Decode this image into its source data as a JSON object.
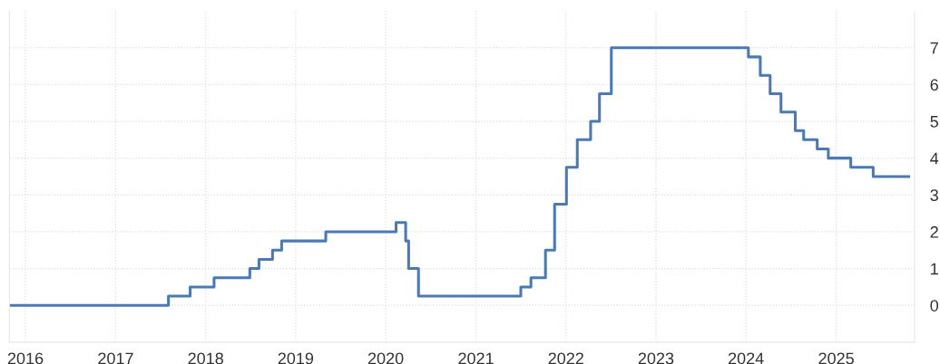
{
  "chart_data": {
    "type": "step",
    "x": [
      "2015-11-01",
      "2017-08-03",
      "2017-10-30",
      "2018-02-04",
      "2018-06-29",
      "2018-08-05",
      "2018-09-29",
      "2018-11-05",
      "2019-05-03",
      "2020-02-12",
      "2020-03-22",
      "2020-04-03",
      "2020-05-13",
      "2021-07-02",
      "2021-08-12",
      "2021-10-10",
      "2021-11-16",
      "2022-01-03",
      "2022-02-16",
      "2022-04-11",
      "2022-05-17",
      "2022-07-04",
      "2024-01-11",
      "2024-02-28",
      "2024-04-08",
      "2024-05-22",
      "2024-07-19",
      "2024-08-22",
      "2024-10-16",
      "2024-11-30",
      "2025-03-01",
      "2025-05-31",
      "2025-10-22"
    ],
    "series": [
      {
        "color": "#4a79b4",
        "values": [
          0,
          0.25,
          0.5,
          0.75,
          1.0,
          1.25,
          1.5,
          1.75,
          2.0,
          2.25,
          1.75,
          1.0,
          0.25,
          0.5,
          0.75,
          1.5,
          2.75,
          3.75,
          4.5,
          5.0,
          5.75,
          7.0,
          6.75,
          6.25,
          5.75,
          5.25,
          4.75,
          4.5,
          4.25,
          4.0,
          3.75,
          3.5,
          3.5
        ]
      }
    ],
    "xlim": [
      "2015-10-28",
      "2025-11-15"
    ],
    "xticks": [
      "2016",
      "2017",
      "2018",
      "2019",
      "2020",
      "2021",
      "2022",
      "2023",
      "2024",
      "2025"
    ],
    "ylim": [
      -1,
      8
    ],
    "yticks": [
      0,
      1,
      2,
      3,
      4,
      5,
      6,
      7
    ],
    "grid": true,
    "line_style": "solid",
    "marker": "none",
    "legend": false
  }
}
